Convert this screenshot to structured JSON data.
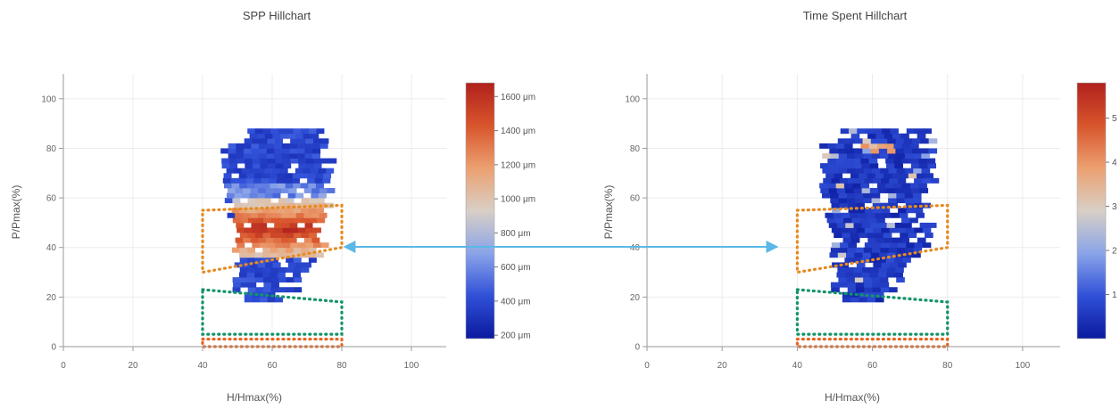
{
  "chart_data": [
    {
      "type": "heatmap",
      "title": "SPP Hillchart",
      "xlabel": "H/Hmax(%)",
      "ylabel": "P/Pmax(%)",
      "xlim": [
        0,
        110
      ],
      "ylim": [
        0,
        110
      ],
      "x_ticks": [
        0,
        20,
        40,
        60,
        80,
        100
      ],
      "y_ticks": [
        0,
        20,
        40,
        60,
        80,
        100
      ],
      "grid": true,
      "colorscale": {
        "ticks": [
          "1600 μm",
          "1400 μm",
          "1200 μm",
          "1000 μm",
          "800 μm",
          "600 μm",
          "400 μm",
          "200 μm"
        ],
        "range": [
          180,
          1680
        ],
        "colors": [
          "#0a1a9e",
          "#3050d8",
          "#8aa4e8",
          "#d8cfc6",
          "#eca070",
          "#d8552c",
          "#b0211c"
        ]
      },
      "data_region": {
        "h_range": [
          46,
          80
        ],
        "p_range": [
          18,
          86
        ]
      },
      "hot_zone": {
        "h_range": [
          48,
          76
        ],
        "p_range": [
          35,
          58
        ],
        "peak_um": 1550
      },
      "regions": [
        {
          "name": "orange-band",
          "color": "#e68a1f",
          "vertices": [
            [
              40,
              55
            ],
            [
              80,
              57
            ],
            [
              80,
              40
            ],
            [
              40,
              30
            ]
          ]
        },
        {
          "name": "green-band",
          "color": "#13936a",
          "vertices": [
            [
              40,
              23
            ],
            [
              80,
              18
            ],
            [
              80,
              5
            ],
            [
              40,
              5
            ]
          ]
        },
        {
          "name": "baseline-band",
          "color": "#e8641f",
          "vertices": [
            [
              40,
              3
            ],
            [
              80,
              3
            ],
            [
              80,
              0
            ],
            [
              40,
              0
            ]
          ]
        }
      ]
    },
    {
      "type": "heatmap",
      "title": "Time Spent Hillchart",
      "xlabel": "H/Hmax(%)",
      "ylabel": "P/Pmax(%)",
      "xlim": [
        0,
        110
      ],
      "ylim": [
        0,
        110
      ],
      "x_ticks": [
        0,
        20,
        40,
        60,
        80,
        100
      ],
      "y_ticks": [
        0,
        20,
        40,
        60,
        80,
        100
      ],
      "grid": true,
      "colorscale": {
        "ticks": [
          "5",
          "4",
          "3",
          "2",
          "1"
        ],
        "range": [
          0,
          5.8
        ],
        "colors": [
          "#0a1a9e",
          "#3050d8",
          "#8aa4e8",
          "#d8cfc6",
          "#eca070",
          "#d8552c",
          "#b0211c"
        ]
      },
      "data_region": {
        "h_range": [
          44,
          80
        ],
        "p_range": [
          18,
          86
        ]
      },
      "regions": [
        {
          "name": "orange-band",
          "color": "#e68a1f",
          "vertices": [
            [
              40,
              55
            ],
            [
              80,
              57
            ],
            [
              80,
              40
            ],
            [
              40,
              30
            ]
          ]
        },
        {
          "name": "green-band",
          "color": "#13936a",
          "vertices": [
            [
              40,
              23
            ],
            [
              80,
              18
            ],
            [
              80,
              5
            ],
            [
              40,
              5
            ]
          ]
        },
        {
          "name": "baseline-band",
          "color": "#e8641f",
          "vertices": [
            [
              40,
              3
            ],
            [
              80,
              3
            ],
            [
              80,
              0
            ],
            [
              40,
              0
            ]
          ]
        }
      ]
    }
  ],
  "connector": {
    "color": "#5bb8e6",
    "from_chart": 0,
    "to_chart": 1
  }
}
